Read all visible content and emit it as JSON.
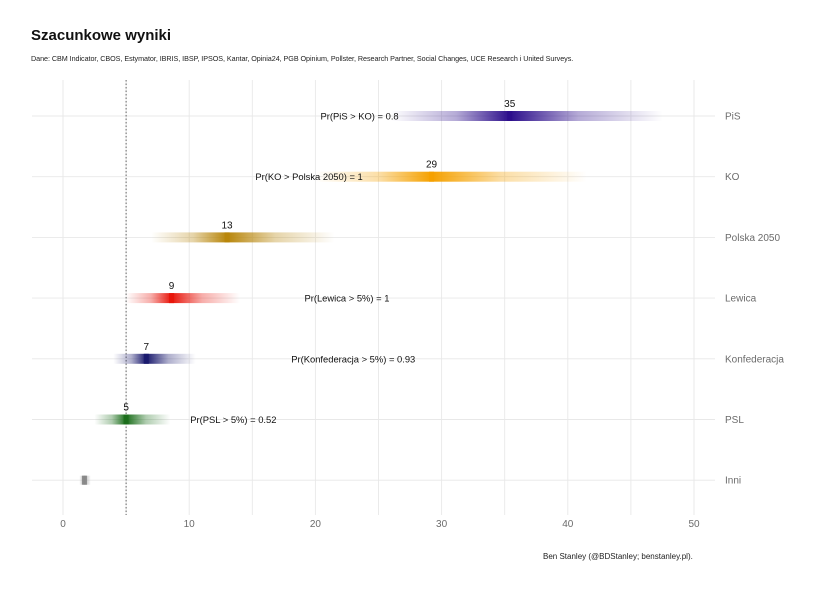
{
  "title": "Szacunkowe wyniki",
  "subtitle": "Dane: CBM Indicator, CBOS, Estymator, IBRIS, IBSP, IPSOS, Kantar, Opinia24, PGB Opinium, Pollster, Research Partner, Social Changes, UCE Research i United Surveys.",
  "caption": "Ben Stanley (@BDStanley; benstanley.pl).",
  "chart_data": {
    "type": "interval",
    "title": "Szacunkowe wyniki",
    "xlim": [
      -2.5,
      52.5
    ],
    "x_ticks": [
      0,
      10,
      20,
      30,
      40,
      50
    ],
    "threshold_line": 5,
    "grid": true,
    "parties": [
      {
        "name": "PiS",
        "estimate": 35.4,
        "label": "35",
        "low": 26.0,
        "high": 47.5,
        "color": "#2d0f8c",
        "prob_label": "Pr(PiS > KO)  =  0.8",
        "prob_x": 23.5
      },
      {
        "name": "KO",
        "estimate": 29.2,
        "label": "29",
        "low": 20.0,
        "high": 41.5,
        "color": "#f5a100",
        "prob_label": "Pr(KO > Polska 2050)  =  1",
        "prob_x": 19.5
      },
      {
        "name": "Polska 2050",
        "estimate": 13.0,
        "label": "13",
        "low": 7.0,
        "high": 21.5,
        "color": "#b8860b",
        "prob_label": "",
        "prob_x": 0
      },
      {
        "name": "Lewica",
        "estimate": 8.6,
        "label": "9",
        "low": 5.0,
        "high": 14.0,
        "color": "#e8160c",
        "prob_label": "Pr(Lewica > 5%)  =  1",
        "prob_x": 22.5
      },
      {
        "name": "Konfederacja",
        "estimate": 6.6,
        "label": "7",
        "low": 4.0,
        "high": 10.5,
        "color": "#1a1a6e",
        "prob_label": "Pr(Konfederacja > 5%)  =  0.93",
        "prob_x": 23.0
      },
      {
        "name": "PSL",
        "estimate": 5.0,
        "label": "5",
        "low": 2.5,
        "high": 8.5,
        "color": "#1b6e1b",
        "prob_label": "Pr(PSL > 5%)  =  0.52",
        "prob_x": 13.5
      },
      {
        "name": "Inni",
        "estimate": 1.7,
        "label": "",
        "low": 1.3,
        "high": 2.2,
        "color": "#888888",
        "prob_label": "",
        "prob_x": 0
      }
    ]
  }
}
